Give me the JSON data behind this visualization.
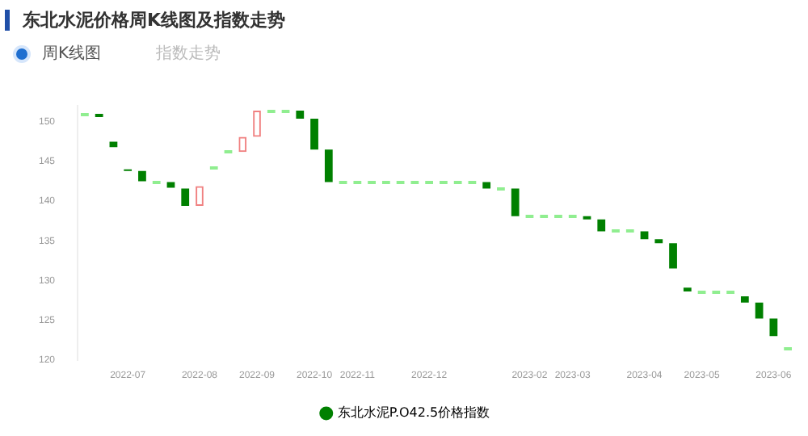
{
  "chart_data": {
    "type": "candlestick",
    "title": "东北水泥价格周K线图及指数走势",
    "annotations": [
      "周K线图",
      "指数走势"
    ],
    "categories": [
      null,
      null,
      null,
      "2022-07",
      null,
      null,
      null,
      null,
      "2022-08",
      null,
      null,
      null,
      "2022-09",
      null,
      null,
      null,
      "2022-10",
      null,
      null,
      "2022-11",
      null,
      null,
      null,
      null,
      "2022-12",
      null,
      null,
      null,
      null,
      null,
      null,
      "2023-02",
      null,
      null,
      "2023-03",
      null,
      null,
      null,
      null,
      "2023-04",
      null,
      null,
      null,
      "2023-05",
      null,
      null,
      null,
      null,
      "2023-06",
      null
    ],
    "series": [
      {
        "name": "东北水泥P.O42.5价格指数",
        "color": "#008000",
        "ohlc": [
          [
            151,
            151,
            151,
            151
          ],
          [
            151,
            151,
            150.6,
            150.6
          ],
          [
            147.5,
            147.5,
            146.8,
            146.8
          ],
          [
            144,
            144,
            143.8,
            143.8
          ],
          [
            143.8,
            143.8,
            142.5,
            142.5
          ],
          [
            142.4,
            142.4,
            142.4,
            142.4
          ],
          [
            142.4,
            142.4,
            141.7,
            141.7
          ],
          [
            141.6,
            141.6,
            139.4,
            139.4
          ],
          [
            139.4,
            141.9,
            139.4,
            141.9
          ],
          [
            144.2,
            144.2,
            144.2,
            144.2
          ],
          [
            146.2,
            146.2,
            146.2,
            146.2
          ],
          [
            146.2,
            148.1,
            146.2,
            148.1
          ],
          [
            148.1,
            151.4,
            148.1,
            151.4
          ],
          [
            151.4,
            151.4,
            151.4,
            151.4
          ],
          [
            151.4,
            151.4,
            151.4,
            151.4
          ],
          [
            151.4,
            151.4,
            150.4,
            150.4
          ],
          [
            150.4,
            150.4,
            146.5,
            146.5
          ],
          [
            146.5,
            146.5,
            142.4,
            142.4
          ],
          [
            142.4,
            142.4,
            142.4,
            142.4
          ],
          [
            142.4,
            142.4,
            142.4,
            142.4
          ],
          [
            142.4,
            142.4,
            142.4,
            142.4
          ],
          [
            142.4,
            142.4,
            142.4,
            142.4
          ],
          [
            142.4,
            142.4,
            142.4,
            142.4
          ],
          [
            142.4,
            142.4,
            142.4,
            142.4
          ],
          [
            142.4,
            142.4,
            142.4,
            142.4
          ],
          [
            142.4,
            142.4,
            142.4,
            142.4
          ],
          [
            142.4,
            142.4,
            142.4,
            142.4
          ],
          [
            142.4,
            142.4,
            142.4,
            142.4
          ],
          [
            142.4,
            142.4,
            141.6,
            141.6
          ],
          [
            141.6,
            141.6,
            141.6,
            141.6
          ],
          [
            141.6,
            141.6,
            138.1,
            138.1
          ],
          [
            138.1,
            138.1,
            138.1,
            138.1
          ],
          [
            138.1,
            138.1,
            138.1,
            138.1
          ],
          [
            138.1,
            138.1,
            138.1,
            138.1
          ],
          [
            138.1,
            138.1,
            138.1,
            138.1
          ],
          [
            138.1,
            138.1,
            137.7,
            137.7
          ],
          [
            137.7,
            137.7,
            136.2,
            136.2
          ],
          [
            136.2,
            136.2,
            136.2,
            136.2
          ],
          [
            136.2,
            136.2,
            136.2,
            136.2
          ],
          [
            136.2,
            136.2,
            135.2,
            135.2
          ],
          [
            135.2,
            135.2,
            134.7,
            134.7
          ],
          [
            134.7,
            134.7,
            131.5,
            131.5
          ],
          [
            129.1,
            129.1,
            128.6,
            128.6
          ],
          [
            128.6,
            128.6,
            128.6,
            128.6
          ],
          [
            128.6,
            128.6,
            128.6,
            128.6
          ],
          [
            128.6,
            128.6,
            128.6,
            128.6
          ],
          [
            128,
            128,
            127.2,
            127.2
          ],
          [
            127.2,
            127.2,
            125.2,
            125.2
          ],
          [
            125.2,
            125.2,
            123,
            123
          ],
          [
            121.3,
            121.3,
            121.3,
            121.3
          ]
        ],
        "colors": [
          "#90ee90",
          "#008000",
          "#008000",
          "#008000",
          "#008000",
          "#90ee90",
          "#008000",
          "#008000",
          "#f08080",
          "#90ee90",
          "#90ee90",
          "#f08080",
          "#f08080",
          "#90ee90",
          "#90ee90",
          "#008000",
          "#008000",
          "#008000",
          "#90ee90",
          "#90ee90",
          "#90ee90",
          "#90ee90",
          "#90ee90",
          "#90ee90",
          "#90ee90",
          "#90ee90",
          "#90ee90",
          "#90ee90",
          "#008000",
          "#90ee90",
          "#008000",
          "#90ee90",
          "#90ee90",
          "#90ee90",
          "#90ee90",
          "#008000",
          "#008000",
          "#90ee90",
          "#90ee90",
          "#008000",
          "#008000",
          "#008000",
          "#008000",
          "#90ee90",
          "#90ee90",
          "#90ee90",
          "#008000",
          "#008000",
          "#008000",
          "#90ee90"
        ]
      }
    ],
    "ylim": [
      120,
      152
    ],
    "yticks": [
      120,
      125,
      130,
      135,
      140,
      145,
      150
    ],
    "legend": "bottom"
  }
}
